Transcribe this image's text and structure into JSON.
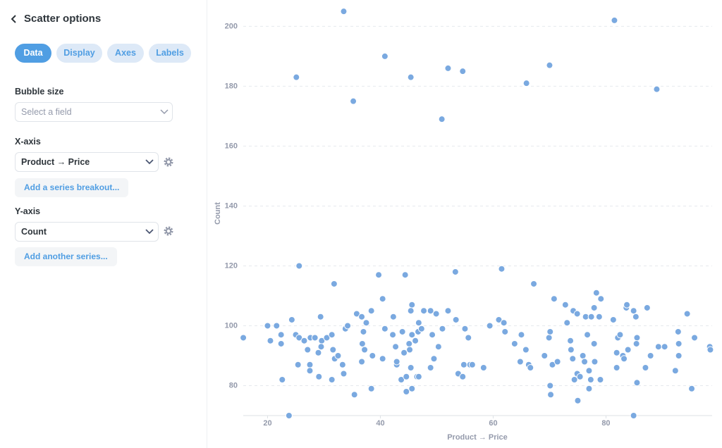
{
  "sidebar": {
    "title": "Scatter options",
    "tabs": [
      "Data",
      "Display",
      "Axes",
      "Labels"
    ],
    "bubble_size": {
      "label": "Bubble size",
      "placeholder": "Select a field"
    },
    "x_axis": {
      "label": "X-axis",
      "field": "Product → Price",
      "button": "Add a series breakout..."
    },
    "y_axis": {
      "label": "Y-axis",
      "field": "Count",
      "button": "Add another series..."
    }
  },
  "chart_data": {
    "type": "scatter",
    "x_label": "Product → Price",
    "y_label": "Count",
    "color": "#7aa9e0",
    "xlim": [
      15.69,
      98.82
    ],
    "ylim": [
      70,
      208.8
    ],
    "xticks": [
      20,
      40,
      60,
      80
    ],
    "yticks": [
      80,
      100,
      120,
      140,
      160,
      180,
      200
    ],
    "grid": true,
    "x": [
      15.7,
      33.5,
      25.1,
      35.2,
      40.8,
      45.4,
      52,
      54.6,
      50.9,
      65.9,
      70,
      81.5,
      89,
      25.6,
      31.8,
      39.7,
      44.4,
      53.3,
      61.5,
      67.2,
      23.8,
      84.9,
      75,
      20,
      21.6,
      20.5,
      22.4,
      22.4,
      22.6,
      24.3,
      25,
      25.6,
      26.5,
      25.4,
      27.1,
      27.6,
      28.4,
      27.5,
      27.5,
      29.4,
      29.6,
      29.5,
      29,
      29.1,
      30.5,
      31.4,
      31.6,
      31.4,
      31.9,
      32.5,
      33.3,
      33.5,
      33.8,
      34.2,
      35.4,
      35.8,
      36.7,
      36.8,
      37.2,
      37,
      36.7,
      37.5,
      38.4,
      38.6,
      38.4,
      40.4,
      40.8,
      40.4,
      42.3,
      42.2,
      42.7,
      42.9,
      42.9,
      43.7,
      43.9,
      44.2,
      44.6,
      44.6,
      45.1,
      45.2,
      45.6,
      45.4,
      45.6,
      45.4,
      45.6,
      46.2,
      46.5,
      46.7,
      46.8,
      47.3,
      47.7,
      46.8,
      48.9,
      49.2,
      48.9,
      49.5,
      49.9,
      50.3,
      51,
      52,
      53.4,
      53.8,
      54.6,
      54.8,
      55,
      55.6,
      55.9,
      56.3,
      58.3,
      59.4,
      61,
      61.9,
      62.1,
      63.8,
      64.8,
      65,
      65.8,
      66.3,
      66.6,
      69.1,
      69.9,
      70.1,
      70.5,
      70.1,
      70.2,
      70.8,
      71.4,
      72.8,
      73.1,
      73.7,
      73.8,
      74.1,
      74.2,
      74.4,
      74.9,
      74.9,
      75.4,
      75.9,
      76.1,
      76.2,
      76.4,
      76.7,
      77,
      77.3,
      77,
      77.4,
      77.9,
      77.9,
      78,
      78.3,
      78.8,
      79,
      79.1,
      81.3,
      81.9,
      81.9,
      82.1,
      82.5,
      83,
      83.2,
      83.6,
      83.7,
      83.9,
      84.9,
      85.3,
      85.5,
      85.4,
      85.5,
      87,
      87.3,
      87.9,
      89.3,
      90.4,
      92.3,
      92.8,
      92.9,
      92.9,
      94.4,
      95.2,
      95.7,
      98.4,
      98.5
    ],
    "values": [
      96,
      205,
      183,
      175,
      190,
      183,
      186,
      185,
      169,
      181,
      187,
      202,
      179,
      120,
      114,
      117,
      117,
      118,
      119,
      114,
      70,
      70,
      75,
      100,
      100,
      95,
      97,
      94,
      82,
      102,
      97,
      96,
      95,
      87,
      92,
      96,
      96,
      87,
      85,
      103,
      95,
      93,
      91,
      83,
      96,
      97,
      92,
      82,
      89,
      90,
      87,
      84,
      99,
      100,
      77,
      104,
      103,
      94,
      92,
      98,
      88,
      101,
      105,
      90,
      79,
      109,
      99,
      89,
      103,
      97,
      93,
      87,
      88,
      82,
      98,
      91,
      83,
      78,
      94,
      92,
      107,
      105,
      97,
      86,
      79,
      95,
      83,
      98,
      101,
      99,
      105,
      83,
      105,
      97,
      86,
      89,
      104,
      93,
      99,
      105,
      102,
      84,
      83,
      87,
      99,
      96,
      87,
      87,
      86,
      100,
      102,
      101,
      98,
      94,
      88,
      97,
      92,
      87,
      86,
      90,
      96,
      98,
      87,
      80,
      77,
      109,
      88,
      107,
      101,
      95,
      92,
      89,
      105,
      82,
      104,
      84,
      83,
      90,
      88,
      88,
      103,
      97,
      85,
      82,
      79,
      103,
      106,
      94,
      88,
      111,
      103,
      82,
      109,
      102,
      91,
      86,
      96,
      97,
      90,
      89,
      106,
      107,
      92,
      105,
      103,
      96,
      94,
      81,
      86,
      106,
      90,
      93,
      93,
      85,
      98,
      94,
      90,
      104,
      79,
      96,
      93,
      92
    ]
  }
}
